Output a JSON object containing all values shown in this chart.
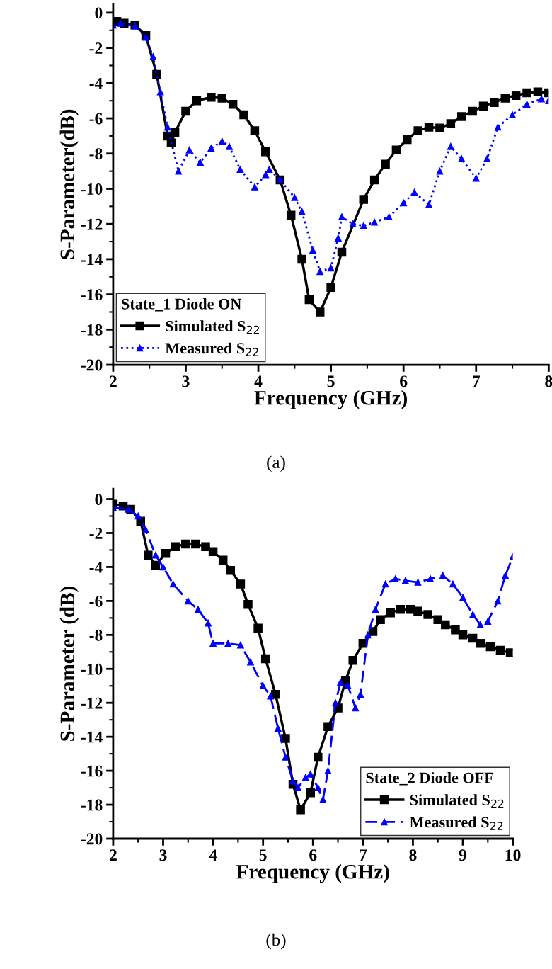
{
  "chart_data": [
    {
      "type": "line",
      "xlabel": "Frequency (GHz)",
      "ylabel": "S-Parameter(dB)",
      "legend_title": "State_1 Diode ON",
      "legend": "bottom left",
      "grid": false,
      "xlim": [
        2,
        8
      ],
      "xticks": [
        2,
        3,
        4,
        5,
        6,
        7,
        8
      ],
      "ylim": [
        -20,
        0.5
      ],
      "yticks": [
        -20,
        -18,
        -16,
        -14,
        -12,
        -10,
        -8,
        -6,
        -4,
        -2,
        0
      ],
      "annotations": [
        "(a)"
      ],
      "series": [
        {
          "name": "Simulated S$_{22}$",
          "color": "#000000",
          "marker": "square",
          "line_style": "solid",
          "x": [
            2.05,
            2.15,
            2.3,
            2.45,
            2.6,
            2.75,
            2.8,
            2.85,
            3.0,
            3.15,
            3.35,
            3.5,
            3.65,
            3.8,
            3.95,
            4.1,
            4.3,
            4.45,
            4.6,
            4.7,
            4.85,
            5.0,
            5.15,
            5.45,
            5.6,
            5.75,
            5.9,
            6.05,
            6.2,
            6.35,
            6.5,
            6.65,
            6.8,
            6.95,
            7.1,
            7.25,
            7.4,
            7.55,
            7.7,
            7.85,
            8.0
          ],
          "values": [
            -0.5,
            -0.6,
            -0.7,
            -1.3,
            -3.5,
            -7.0,
            -7.4,
            -6.8,
            -5.6,
            -5.0,
            -4.8,
            -4.85,
            -5.2,
            -5.8,
            -6.7,
            -7.9,
            -9.5,
            -11.5,
            -14,
            -16.3,
            -17,
            -15.6,
            -13.6,
            -10.6,
            -9.5,
            -8.6,
            -7.8,
            -7.2,
            -6.7,
            -6.5,
            -6.55,
            -6.3,
            -5.9,
            -5.6,
            -5.3,
            -5.1,
            -4.85,
            -4.7,
            -4.55,
            -4.5,
            -4.55
          ]
        },
        {
          "name": "Measured S$_{22}$",
          "color": "#0000ff",
          "marker": "triangle",
          "line_style": "dotted",
          "x": [
            2.0,
            2.1,
            2.3,
            2.45,
            2.55,
            2.65,
            2.75,
            2.9,
            3.05,
            3.2,
            3.35,
            3.5,
            3.6,
            3.75,
            3.95,
            4.1,
            4.15,
            4.3,
            4.5,
            4.6,
            4.75,
            4.85,
            5.0,
            5.1,
            5.15,
            5.3,
            5.45,
            5.6,
            5.8,
            6.0,
            6.15,
            6.35,
            6.5,
            6.65,
            6.8,
            7.0,
            7.15,
            7.3,
            7.5,
            7.7,
            7.9,
            8.0
          ],
          "values": [
            -0.7,
            -0.6,
            -0.75,
            -1.4,
            -2.5,
            -4.5,
            -6.5,
            -9.0,
            -7.8,
            -8.5,
            -7.7,
            -7.3,
            -7.6,
            -8.9,
            -9.9,
            -9.2,
            -8.9,
            -9.5,
            -10.5,
            -11.3,
            -13.5,
            -14.7,
            -14.5,
            -12.8,
            -11.6,
            -12.0,
            -12.1,
            -11.9,
            -11.6,
            -10.8,
            -10.2,
            -10.9,
            -9.0,
            -7.6,
            -8.3,
            -9.4,
            -8.3,
            -6.5,
            -5.8,
            -5.2,
            -4.9,
            -5.0
          ]
        }
      ]
    },
    {
      "type": "line",
      "xlabel": "Frequency (GHz)",
      "ylabel": "S-Parameter (dB)",
      "legend_title": "State_2 Diode OFF",
      "legend": "bottom right",
      "grid": false,
      "xlim": [
        2,
        10
      ],
      "xticks": [
        2,
        3,
        4,
        5,
        6,
        7,
        8,
        9,
        10
      ],
      "ylim": [
        -20,
        0.6
      ],
      "yticks": [
        -20,
        -18,
        -16,
        -14,
        -12,
        -10,
        -8,
        -6,
        -4,
        -2,
        0
      ],
      "annotations": [
        "(b)"
      ],
      "series": [
        {
          "name": "Simulated S$_{22}$",
          "color": "#000000",
          "marker": "square",
          "line_style": "solid",
          "x": [
            2.0,
            2.2,
            2.35,
            2.55,
            2.7,
            2.85,
            3.05,
            3.25,
            3.45,
            3.65,
            3.85,
            4.0,
            4.2,
            4.35,
            4.55,
            4.7,
            4.9,
            5.05,
            5.25,
            5.45,
            5.6,
            5.75,
            5.95,
            6.1,
            6.3,
            6.5,
            6.65,
            6.8,
            7.0,
            7.2,
            7.35,
            7.55,
            7.75,
            7.95,
            8.1,
            8.3,
            8.5,
            8.65,
            8.85,
            9.0,
            9.2,
            9.35,
            9.55,
            9.75,
            9.95
          ],
          "values": [
            -0.3,
            -0.4,
            -0.6,
            -1.3,
            -3.3,
            -3.9,
            -3.2,
            -2.8,
            -2.65,
            -2.65,
            -2.8,
            -3.1,
            -3.6,
            -4.2,
            -5.0,
            -6.2,
            -7.6,
            -9.4,
            -11.5,
            -14.1,
            -16.8,
            -18.3,
            -17.3,
            -15.2,
            -13.4,
            -12.3,
            -10.7,
            -9.5,
            -8.5,
            -7.8,
            -7.1,
            -6.7,
            -6.5,
            -6.5,
            -6.6,
            -6.8,
            -7.1,
            -7.4,
            -7.7,
            -8.0,
            -8.2,
            -8.5,
            -8.7,
            -8.9,
            -9.05
          ]
        },
        {
          "name": "Measured S$_{22}$",
          "color": "#0000ff",
          "marker": "triangle",
          "line_style": "dashed",
          "x": [
            2.0,
            2.3,
            2.5,
            2.65,
            2.85,
            3.0,
            3.2,
            3.5,
            3.7,
            3.9,
            4.0,
            4.3,
            4.55,
            4.75,
            5.0,
            5.15,
            5.3,
            5.45,
            5.6,
            5.7,
            5.85,
            5.95,
            6.1,
            6.2,
            6.3,
            6.45,
            6.55,
            6.7,
            6.85,
            6.95,
            7.1,
            7.25,
            7.45,
            7.65,
            7.85,
            8.1,
            8.35,
            8.6,
            8.8,
            9.0,
            9.2,
            9.35,
            9.5,
            9.7,
            9.85,
            10.0
          ],
          "values": [
            -0.5,
            -0.6,
            -1.0,
            -1.8,
            -3.3,
            -4.0,
            -5.0,
            -6.0,
            -6.5,
            -7.3,
            -8.5,
            -8.5,
            -8.6,
            -9.6,
            -11.0,
            -11.6,
            -13.5,
            -15.2,
            -16.6,
            -17.0,
            -16.4,
            -16.2,
            -17.0,
            -17.7,
            -16.0,
            -12.0,
            -10.8,
            -11.0,
            -12.3,
            -11.5,
            -8.0,
            -6.5,
            -5.0,
            -4.7,
            -4.8,
            -4.9,
            -4.7,
            -4.5,
            -5.0,
            -5.8,
            -6.8,
            -7.4,
            -7.2,
            -6.0,
            -4.5,
            -3.4
          ]
        }
      ]
    }
  ]
}
